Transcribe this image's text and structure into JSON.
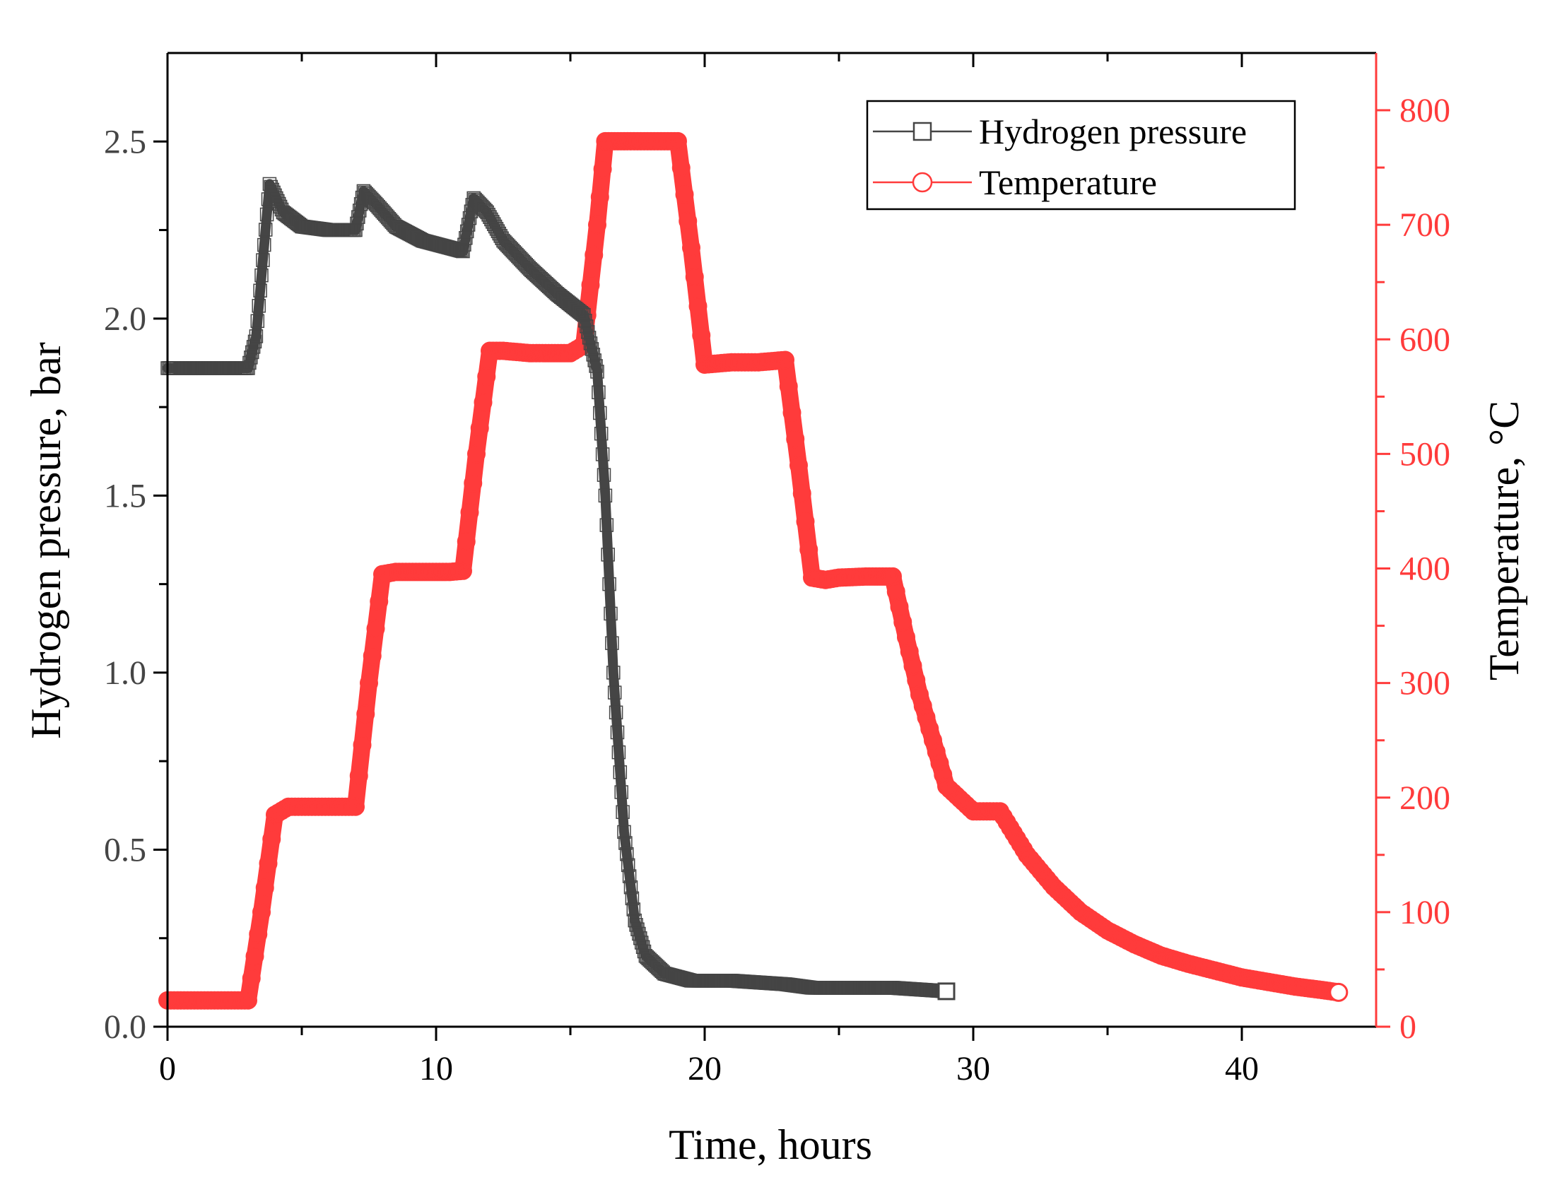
{
  "colors": {
    "pressure": "#454545",
    "temperature": "#ff3b3b",
    "axis": "#000000",
    "background": "#ffffff"
  },
  "chart_data": {
    "type": "line",
    "title": "",
    "xlabel": "Time, hours",
    "ylabel_left": "Hydrogen pressure, bar",
    "ylabel_right": "Temperature, °C",
    "xlim": [
      0,
      45
    ],
    "ylim_left": [
      0,
      2.75
    ],
    "ylim_right": [
      0,
      850
    ],
    "x_ticks": [
      0,
      10,
      20,
      30,
      40
    ],
    "x_tick_labels": [
      "0",
      "10",
      "20",
      "30",
      "40"
    ],
    "y_left_ticks": [
      0,
      0.5,
      1.0,
      1.5,
      2.0,
      2.5
    ],
    "y_left_tick_labels": [
      "0.0",
      "0.5",
      "1.0",
      "1.5",
      "2.0",
      "2.5"
    ],
    "y_right_ticks": [
      0,
      100,
      200,
      300,
      400,
      500,
      600,
      700,
      800
    ],
    "y_right_tick_labels": [
      "0",
      "100",
      "200",
      "300",
      "400",
      "500",
      "600",
      "700",
      "800"
    ],
    "legend": {
      "position": "top-right",
      "entries": [
        "Hydrogen pressure",
        "Temperature"
      ]
    },
    "series": [
      {
        "name": "Hydrogen pressure",
        "axis": "left",
        "marker": "square",
        "x": [
          0,
          1,
          2,
          3,
          3.3,
          3.8,
          4.3,
          5,
          6,
          7,
          7.3,
          7.8,
          8.5,
          9.5,
          10.5,
          11,
          11.4,
          11.9,
          12.5,
          13.5,
          14.5,
          15.5,
          16,
          16.3,
          16.6,
          17,
          17.4,
          17.8,
          18.5,
          19.5,
          21,
          23,
          24,
          25,
          27,
          29
        ],
        "values": [
          1.86,
          1.86,
          1.86,
          1.86,
          1.95,
          2.38,
          2.3,
          2.26,
          2.25,
          2.25,
          2.36,
          2.32,
          2.26,
          2.22,
          2.2,
          2.19,
          2.34,
          2.3,
          2.22,
          2.14,
          2.07,
          2.01,
          1.85,
          1.5,
          1.0,
          0.55,
          0.3,
          0.2,
          0.15,
          0.13,
          0.13,
          0.12,
          0.11,
          0.11,
          0.11,
          0.1
        ]
      },
      {
        "name": "Temperature",
        "axis": "right",
        "marker": "circle",
        "x": [
          0,
          1,
          2,
          3,
          3.5,
          4,
          4.5,
          5,
          6,
          7,
          7.5,
          8,
          8.5,
          9.5,
          10.5,
          11,
          11.5,
          12,
          12.5,
          13.5,
          15,
          15.5,
          16,
          16.3,
          17,
          18,
          19,
          19.5,
          20,
          21,
          22,
          23,
          23.5,
          24,
          24.5,
          25,
          26,
          27,
          27.5,
          28,
          29,
          30,
          31,
          32,
          33,
          34,
          35,
          36,
          37,
          38,
          39,
          40,
          41,
          42,
          43,
          43.6
        ],
        "values": [
          23,
          23,
          23,
          23,
          100,
          185,
          192,
          192,
          192,
          192,
          300,
          395,
          397,
          397,
          397,
          398,
          500,
          590,
          590,
          588,
          588,
          595,
          700,
          773,
          773,
          773,
          773,
          680,
          578,
          580,
          580,
          582,
          490,
          392,
          390,
          392,
          393,
          393,
          340,
          290,
          210,
          188,
          188,
          150,
          122,
          100,
          84,
          72,
          62,
          55,
          49,
          43,
          39,
          35,
          32,
          30
        ]
      }
    ]
  }
}
